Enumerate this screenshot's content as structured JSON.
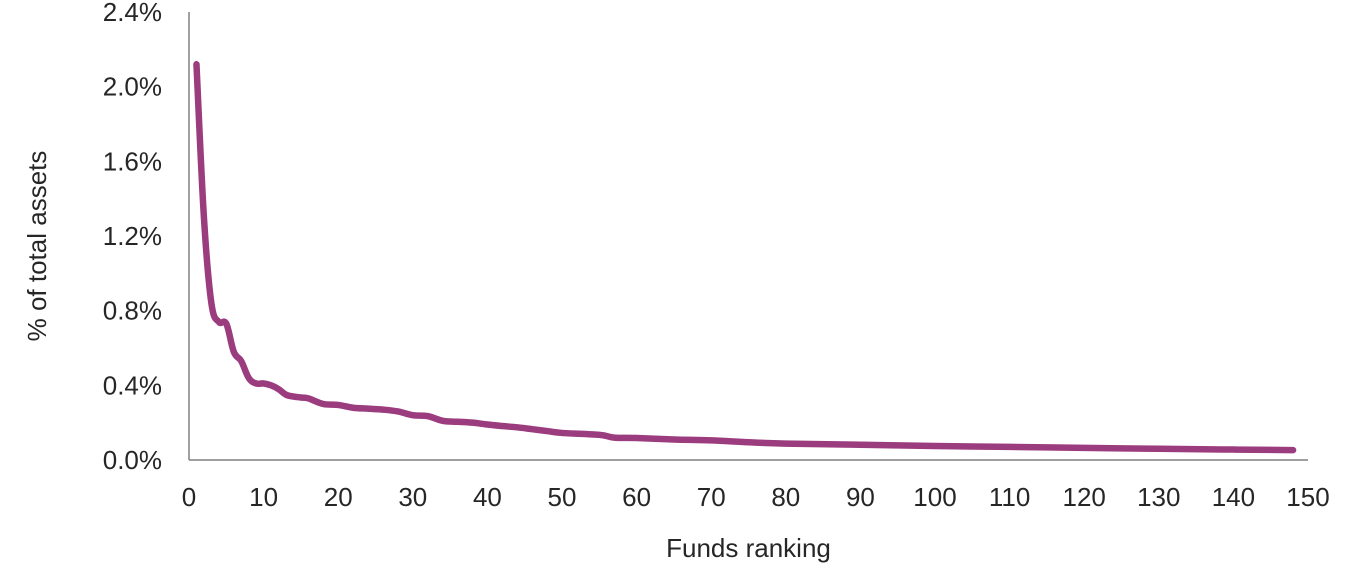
{
  "chart_data": {
    "type": "line",
    "title": "",
    "xlabel": "Funds ranking",
    "ylabel": "% of total assets",
    "xlim": [
      0,
      150
    ],
    "ylim": [
      0,
      2.4
    ],
    "x_ticks": [
      0,
      10,
      20,
      30,
      40,
      50,
      60,
      70,
      80,
      90,
      100,
      110,
      120,
      130,
      140,
      150
    ],
    "x_tick_labels": [
      "0",
      "10",
      "20",
      "30",
      "40",
      "50",
      "60",
      "70",
      "80",
      "90",
      "100",
      "110",
      "120",
      "130",
      "140",
      "150"
    ],
    "y_ticks": [
      0,
      0.4,
      0.8,
      1.2,
      1.6,
      2.0,
      2.4
    ],
    "y_tick_labels": [
      "0.0%",
      "0.4%",
      "0.8%",
      "1.2%",
      "1.6%",
      "2.0%",
      "2.4%"
    ],
    "grid": false,
    "legend": "none",
    "series": [
      {
        "color": "#9b3c7e",
        "x": [
          1,
          2,
          3,
          4,
          5,
          6,
          7,
          8,
          9,
          10,
          11,
          12,
          13,
          14,
          15,
          16,
          18,
          20,
          22,
          24,
          26,
          28,
          30,
          32,
          34,
          36,
          38,
          40,
          42,
          44,
          46,
          48,
          50,
          55,
          57,
          60,
          65,
          70,
          75,
          80,
          90,
          100,
          110,
          120,
          130,
          140,
          148
        ],
        "y": [
          2.12,
          1.3,
          0.84,
          0.74,
          0.73,
          0.58,
          0.53,
          0.44,
          0.41,
          0.41,
          0.4,
          0.38,
          0.35,
          0.34,
          0.335,
          0.33,
          0.3,
          0.295,
          0.28,
          0.275,
          0.27,
          0.26,
          0.24,
          0.235,
          0.21,
          0.205,
          0.2,
          0.19,
          0.182,
          0.175,
          0.165,
          0.155,
          0.145,
          0.135,
          0.12,
          0.118,
          0.11,
          0.105,
          0.095,
          0.088,
          0.082,
          0.075,
          0.07,
          0.065,
          0.06,
          0.056,
          0.053
        ]
      }
    ]
  }
}
